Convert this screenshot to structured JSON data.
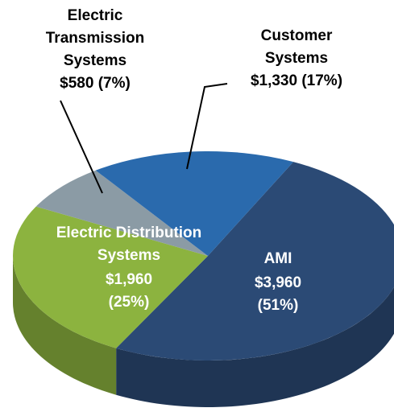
{
  "chart_data": {
    "type": "pie",
    "categories": [
      "AMI",
      "Electric Distribution Systems",
      "Electric Transmission Systems",
      "Customer Systems"
    ],
    "values": [
      3960,
      1960,
      580,
      1330
    ],
    "value_labels": [
      "$3,960 (51%)",
      "$1,960 (25%)",
      "$580 (7%)",
      "$1,330 (17%)"
    ],
    "colors": [
      "#2b4a75",
      "#8cb33f",
      "#8b9ba5",
      "#2a6aad"
    ]
  }
}
